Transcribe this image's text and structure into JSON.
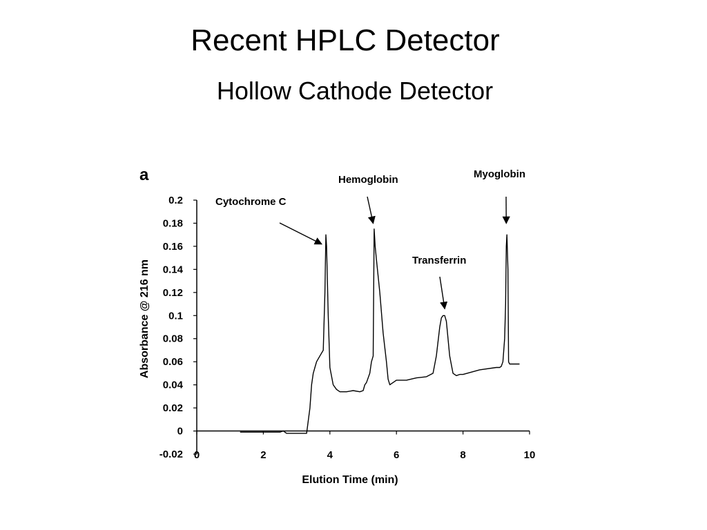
{
  "slide": {
    "title": "Recent HPLC Detector",
    "subtitle": "Hollow Cathode Detector"
  },
  "chart_data": {
    "type": "line",
    "panel_label": "a",
    "xlabel": "Elution Time (min)",
    "ylabel": "Absorbance @ 216 nm",
    "xlim": [
      0,
      10
    ],
    "ylim": [
      -0.02,
      0.2
    ],
    "xticks": [
      0,
      2,
      4,
      6,
      8,
      10
    ],
    "yticks": [
      -0.02,
      0,
      0.02,
      0.04,
      0.06,
      0.08,
      0.1,
      0.12,
      0.14,
      0.16,
      0.18,
      0.2
    ],
    "ytick_labels": [
      "-0.02",
      "0",
      "0.02",
      "0.04",
      "0.06",
      "0.08",
      "0.1",
      "0.12",
      "0.14",
      "0.16",
      "0.18",
      "0.2"
    ],
    "grid": false,
    "series": [
      {
        "x": [
          1.3,
          1.5,
          2.0,
          2.5,
          2.6,
          2.7,
          3.0,
          3.3,
          3.4,
          3.45,
          3.5,
          3.55,
          3.6,
          3.7,
          3.8,
          3.85,
          3.88,
          3.9,
          3.95,
          4.0,
          4.1,
          4.2,
          4.3,
          4.5,
          4.7,
          4.9,
          5.0,
          5.05,
          5.1,
          5.2,
          5.25,
          5.3,
          5.33,
          5.36,
          5.4,
          5.5,
          5.6,
          5.7,
          5.75,
          5.8,
          6.0,
          6.3,
          6.6,
          6.9,
          7.1,
          7.2,
          7.3,
          7.35,
          7.4,
          7.45,
          7.5,
          7.6,
          7.7,
          7.8,
          7.9,
          8.0,
          8.5,
          9.0,
          9.1,
          9.15,
          9.2,
          9.25,
          9.28,
          9.3,
          9.32,
          9.35,
          9.37,
          9.4,
          9.5,
          9.7
        ],
        "y": [
          -0.001,
          -0.001,
          -0.001,
          -0.001,
          0.0,
          -0.002,
          -0.002,
          -0.002,
          0.02,
          0.04,
          0.05,
          0.055,
          0.06,
          0.065,
          0.07,
          0.12,
          0.17,
          0.16,
          0.1,
          0.055,
          0.04,
          0.036,
          0.034,
          0.034,
          0.035,
          0.034,
          0.035,
          0.04,
          0.042,
          0.05,
          0.06,
          0.065,
          0.175,
          0.16,
          0.148,
          0.12,
          0.085,
          0.06,
          0.045,
          0.04,
          0.044,
          0.044,
          0.046,
          0.047,
          0.05,
          0.065,
          0.09,
          0.098,
          0.1,
          0.1,
          0.095,
          0.065,
          0.05,
          0.048,
          0.049,
          0.049,
          0.053,
          0.055,
          0.055,
          0.056,
          0.06,
          0.08,
          0.11,
          0.16,
          0.17,
          0.14,
          0.06,
          0.058,
          0.058,
          0.058
        ]
      }
    ],
    "annotations": [
      {
        "text": "Cytochrome C",
        "x": 3.75,
        "y": 0.162
      },
      {
        "text": "Hemoglobin",
        "x": 5.3,
        "y": 0.18
      },
      {
        "text": "Transferrin",
        "x": 7.45,
        "y": 0.106
      },
      {
        "text": "Myoglobin",
        "x": 9.3,
        "y": 0.18
      }
    ]
  }
}
